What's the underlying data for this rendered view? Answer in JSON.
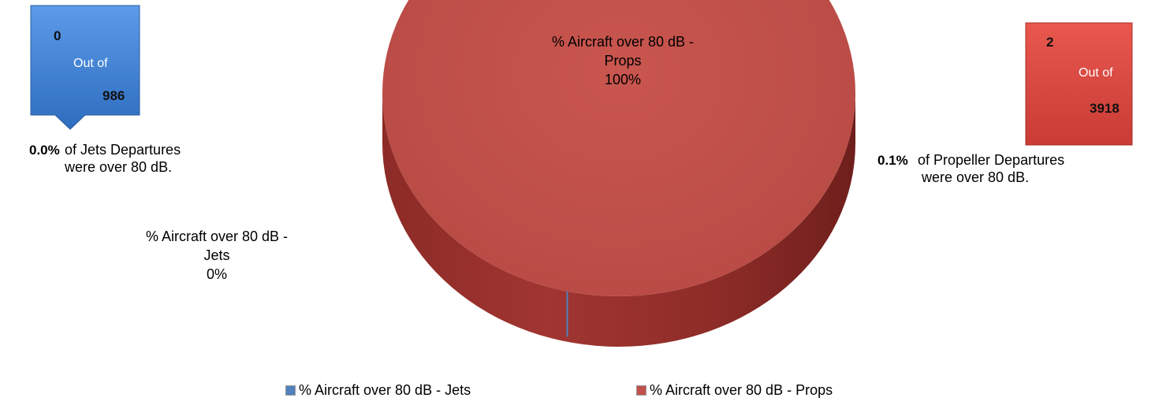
{
  "chart_data": {
    "type": "pie",
    "title": "",
    "categories": [
      "% Aircraft over 80 dB - Jets",
      "% Aircraft over 80 dB - Props"
    ],
    "values": [
      0,
      100
    ],
    "slice_labels": [
      {
        "line1": "% Aircraft over 80 dB -",
        "line2": "Jets",
        "pct": "0%"
      },
      {
        "line1": "% Aircraft over 80 dB -",
        "line2": "Props",
        "pct": "100%"
      }
    ],
    "legend": [
      "% Aircraft over 80 dB - Jets",
      "% Aircraft over 80 dB - Props"
    ],
    "legend_placement": "bottom",
    "style": "3d",
    "colors": {
      "jets": "#4F81BD",
      "props": "#C0504D"
    }
  },
  "callouts": {
    "jets": {
      "count": "0",
      "out_of": "Out of",
      "total": "986",
      "color": "#3A7BD0"
    },
    "props": {
      "count": "2",
      "out_of": "Out of",
      "total": "3918",
      "color": "#D8473F"
    }
  },
  "stats": {
    "jets": {
      "pct": "0.0%",
      "line1": "of Jets Departures",
      "line2": "were over 80 dB."
    },
    "props": {
      "pct": "0.1%",
      "line1": "of  Propeller Departures",
      "line2": "were over 80 dB."
    }
  }
}
